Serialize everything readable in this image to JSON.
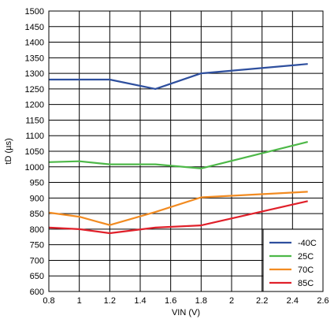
{
  "chart_data": {
    "type": "line",
    "title": "",
    "xlabel": "VIN (V)",
    "ylabel": "tD (µs)",
    "xlim": [
      0.8,
      2.6
    ],
    "ylim": [
      600,
      1500
    ],
    "x_ticks": [
      0.8,
      1,
      1.2,
      1.4,
      1.6,
      1.8,
      2,
      2.2,
      2.4,
      2.6
    ],
    "x_tick_labels": [
      "0.8",
      "1",
      "1.2",
      "1.4",
      "1.6",
      "1.8",
      "2",
      "2.2",
      "2.4",
      "2.6"
    ],
    "y_ticks": [
      600,
      650,
      700,
      750,
      800,
      850,
      900,
      950,
      1000,
      1050,
      1100,
      1150,
      1200,
      1250,
      1300,
      1350,
      1400,
      1450,
      1500
    ],
    "grid": true,
    "legend_position": "bottom-right",
    "series": [
      {
        "name": "-40C",
        "color": "#2e4f9e",
        "x": [
          0.8,
          1.2,
          1.5,
          1.8,
          2.5
        ],
        "y": [
          1280,
          1280,
          1250,
          1300,
          1330
        ]
      },
      {
        "name": "25C",
        "color": "#4db848",
        "x": [
          0.8,
          1.0,
          1.2,
          1.5,
          1.8,
          2.5
        ],
        "y": [
          1015,
          1018,
          1008,
          1008,
          995,
          1080
        ]
      },
      {
        "name": "70C",
        "color": "#f28b21",
        "x": [
          0.8,
          1.0,
          1.2,
          1.5,
          1.8,
          2.5
        ],
        "y": [
          853,
          840,
          813,
          855,
          902,
          920
        ]
      },
      {
        "name": "85C",
        "color": "#e0202a",
        "x": [
          0.8,
          1.0,
          1.2,
          1.5,
          1.8,
          2.5
        ],
        "y": [
          805,
          800,
          787,
          805,
          812,
          890
        ]
      }
    ]
  }
}
